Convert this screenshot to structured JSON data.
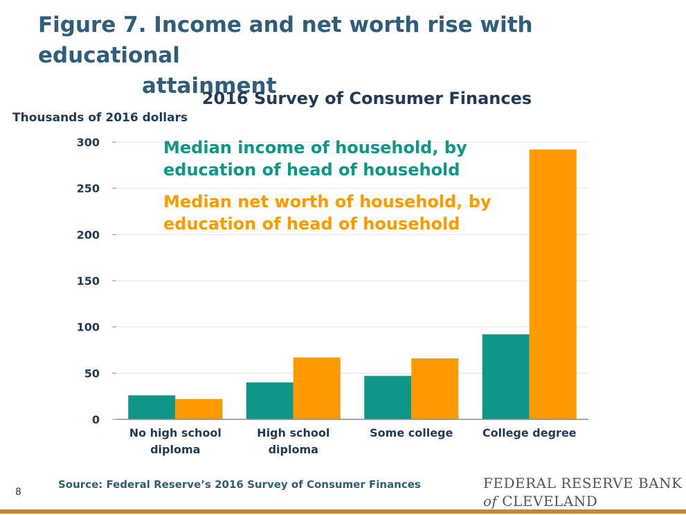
{
  "figure": {
    "title_line1": "Figure 7. Income and net worth rise with educational",
    "title_line2": "attainment"
  },
  "colors": {
    "income": "#0f9688",
    "net_worth": "#ff9900",
    "title": "#2f5d7c",
    "text": "#1f3a5a",
    "rule": "#c8862e"
  },
  "chart_data": {
    "type": "bar",
    "title": "2016 Survey of Consumer Finances",
    "ylabel": "Thousands of 2016 dollars",
    "xlabel": "",
    "ylim": [
      0,
      300
    ],
    "yticks": [
      0,
      50,
      100,
      150,
      200,
      250,
      300
    ],
    "categories": [
      [
        "No high school",
        "diploma"
      ],
      [
        "High school",
        "diploma"
      ],
      [
        "Some college"
      ],
      [
        "College degree"
      ]
    ],
    "series": [
      {
        "name": "Median income of household, by education of head of household",
        "legend_lines": [
          "Median income of household, by",
          "education of head of household"
        ],
        "color": "#0f9688",
        "values": [
          26,
          40,
          47,
          92
        ]
      },
      {
        "name": "Median net worth of household, by education of head of household",
        "legend_lines": [
          "Median net worth of household, by",
          "education of head of household"
        ],
        "color": "#ff9900",
        "values": [
          22,
          67,
          66,
          292
        ]
      }
    ],
    "grid": true,
    "legend_position": "top-left"
  },
  "footer": {
    "source": "Source: Federal Reserve’s 2016 Survey of Consumer Finances",
    "page_number": "8",
    "org_line1": "FEDERAL RESERVE BANK",
    "org_line2_italic": "of",
    "org_line2_rest": " CLEVELAND"
  }
}
